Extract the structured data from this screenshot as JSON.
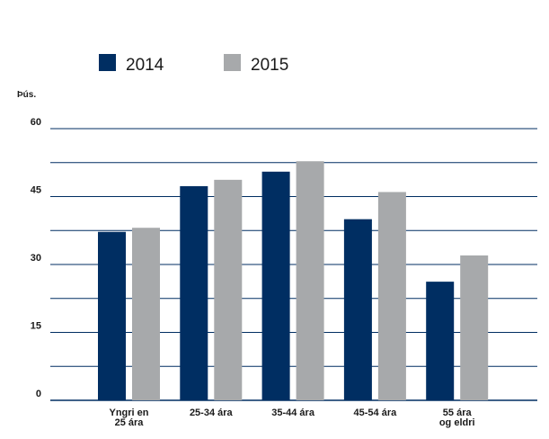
{
  "chart_data": {
    "type": "bar",
    "ylabel": "Þús.",
    "categories": [
      [
        "Yngri en",
        "25 ára"
      ],
      [
        "25-34 ára"
      ],
      [
        "35-44 ára"
      ],
      [
        "45-54 ára"
      ],
      [
        "55 ára",
        "og eldri"
      ]
    ],
    "series": [
      {
        "name": "2014",
        "color": "#002e62",
        "values": [
          37.2,
          47.3,
          50.5,
          40.0,
          26.2
        ]
      },
      {
        "name": "2015",
        "color": "#a7a9ab",
        "values": [
          38.1,
          48.7,
          52.8,
          46.0,
          32.0
        ]
      }
    ],
    "ylim": [
      0,
      60
    ],
    "yticks": [
      0,
      15,
      30,
      45,
      60
    ],
    "grid": true,
    "gridline_color": "#002e62",
    "legend_position": "top"
  }
}
